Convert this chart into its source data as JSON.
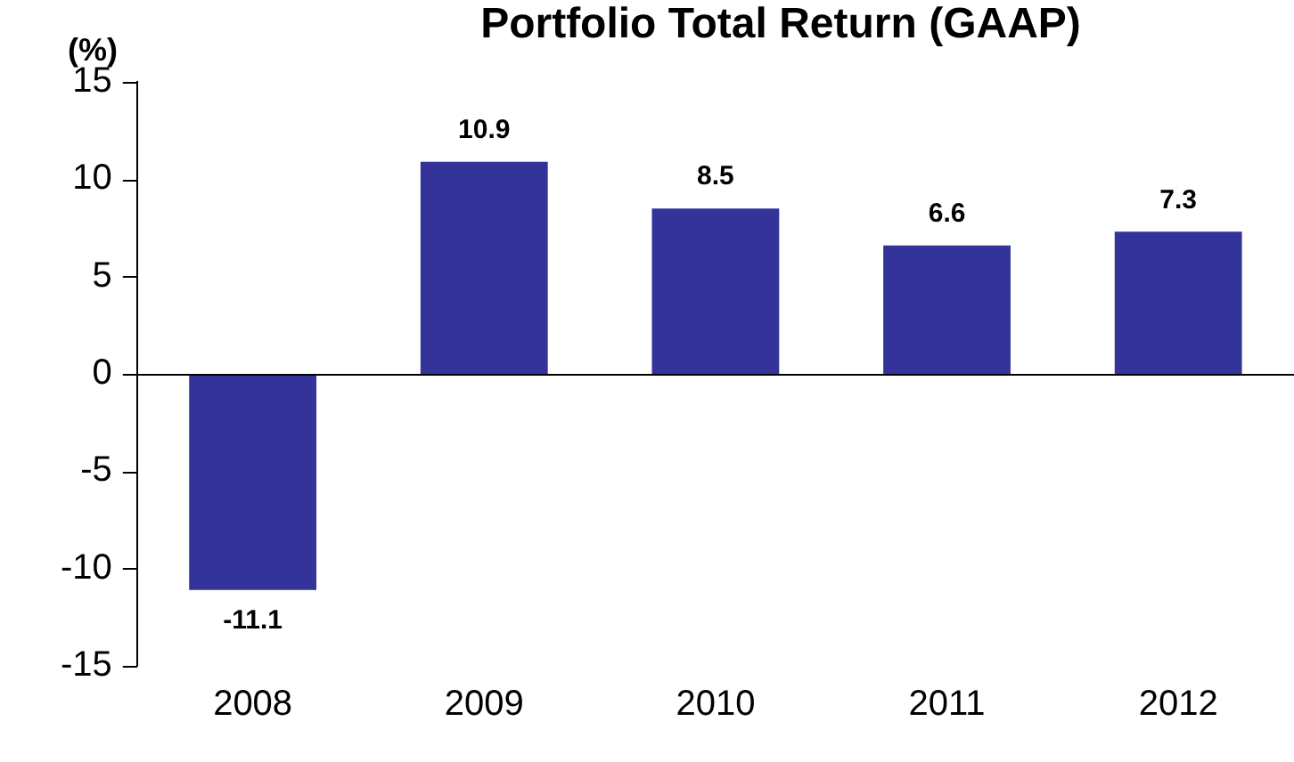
{
  "chart_data": {
    "type": "bar",
    "title": "Portfolio Total Return (GAAP)",
    "ylabel": "(%)",
    "categories": [
      "2008",
      "2009",
      "2010",
      "2011",
      "2012"
    ],
    "values": [
      -11.1,
      10.9,
      8.5,
      6.6,
      7.3
    ],
    "color": "#333399",
    "ylim": [
      -15,
      15
    ],
    "yticks": [
      -15,
      -10,
      -5,
      0,
      5,
      10,
      15
    ],
    "grid": false,
    "ref_lines": [
      {
        "axis": "y",
        "value": 0,
        "color": "#000000"
      }
    ],
    "data_labels": true
  }
}
